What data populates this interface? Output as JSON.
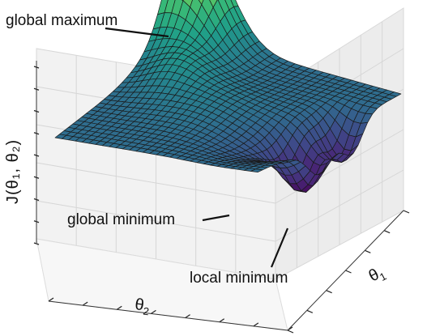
{
  "chart_data": {
    "type": "surface",
    "title": "",
    "xlabel": "θ₁",
    "ylabel": "θ₂",
    "zlabel": "J(θ₁, θ₂)",
    "colormap": "viridis",
    "grid": true,
    "ticks_labeled": false,
    "annotations": [
      {
        "text": "global maximum",
        "feature": "peak"
      },
      {
        "text": "global minimum",
        "feature": "deepest pit"
      },
      {
        "text": "local minimum",
        "feature": "secondary pit"
      }
    ]
  },
  "labels": {
    "global_maximum": "global maximum",
    "global_minimum": "global minimum",
    "local_minimum": "local minimum",
    "theta1_base": "θ",
    "theta1_sub": "1",
    "theta2_base": "θ",
    "theta2_sub": "2",
    "j_label": "J(θ₁, θ₂)"
  }
}
